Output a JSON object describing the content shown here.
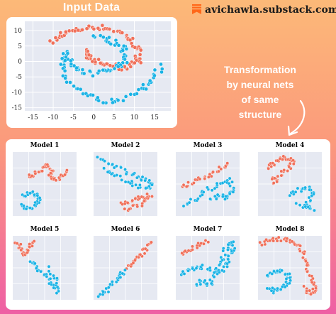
{
  "header": {
    "title": "Input Data",
    "brand": "avichawla.substack.com",
    "brand_icon": "substack-logo-icon"
  },
  "annotation": {
    "lines": [
      "Transformation",
      "by neural nets",
      "of same",
      "structure"
    ],
    "arrow_icon": "curved-arrow-icon"
  },
  "colors": {
    "orange": "#f0705a",
    "blue": "#1ab3e6",
    "plot_bg": "#e6e9f2",
    "grid": "#ffffff",
    "brand_icon": "#ff6719"
  },
  "chart_data": {
    "type": "scatter",
    "title": "Input Data",
    "xlabel": "",
    "ylabel": "",
    "xlim": [
      -17,
      19
    ],
    "ylim": [
      -16,
      13
    ],
    "x_ticks": [
      -15,
      -10,
      -5,
      0,
      5,
      10,
      15
    ],
    "y_ticks": [
      10,
      5,
      0,
      -5,
      -10,
      -15
    ],
    "grid": true,
    "series": [
      {
        "color": "#f0705a",
        "shape": "spiral",
        "points": [
          [
            -10,
            6
          ],
          [
            -8,
            9
          ],
          [
            -5,
            10
          ],
          [
            -1,
            11
          ],
          [
            3,
            11
          ],
          [
            7,
            9
          ],
          [
            10,
            6
          ],
          [
            11,
            3
          ],
          [
            11,
            0
          ],
          [
            9,
            -2
          ],
          [
            6,
            -2
          ],
          [
            3,
            -1
          ],
          [
            0,
            0
          ],
          [
            -2,
            2
          ],
          [
            -1,
            4
          ]
        ]
      },
      {
        "color": "#1ab3e6",
        "shape": "spiral",
        "points": [
          [
            0,
            8
          ],
          [
            4,
            7
          ],
          [
            7,
            5
          ],
          [
            8,
            2
          ],
          [
            7,
            -1
          ],
          [
            4,
            -3
          ],
          [
            0,
            -4
          ],
          [
            -4,
            -3
          ],
          [
            -6,
            0
          ],
          [
            -7,
            3
          ],
          [
            -8,
            -2
          ],
          [
            -6,
            -7
          ],
          [
            -2,
            -11
          ],
          [
            3,
            -13
          ],
          [
            8,
            -12
          ],
          [
            12,
            -9
          ],
          [
            15,
            -5
          ],
          [
            17,
            -1
          ]
        ]
      }
    ]
  },
  "models": [
    {
      "label": "Model 1"
    },
    {
      "label": "Model 2"
    },
    {
      "label": "Model 3"
    },
    {
      "label": "Model 4"
    },
    {
      "label": "Model 5"
    },
    {
      "label": "Model 6"
    },
    {
      "label": "Model 7"
    },
    {
      "label": "Model 8"
    }
  ]
}
